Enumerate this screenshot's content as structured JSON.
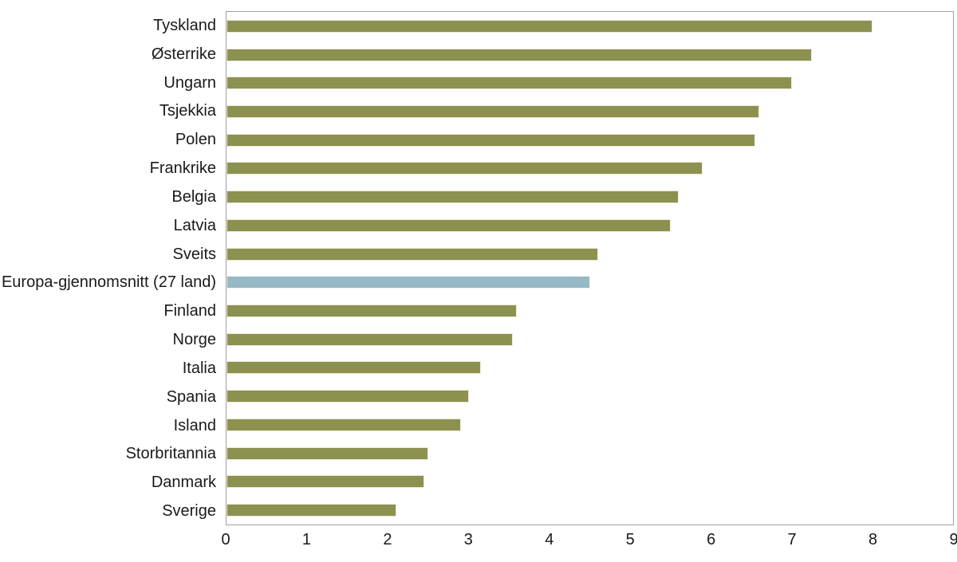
{
  "chart_data": {
    "type": "bar",
    "orientation": "horizontal",
    "title": "",
    "xlabel": "",
    "ylabel": "",
    "grid": false,
    "legend_position": "none",
    "xlim": [
      0,
      9
    ],
    "x_ticks": [
      "0",
      "1",
      "2",
      "3",
      "4",
      "5",
      "6",
      "7",
      "8",
      "9"
    ],
    "categories": [
      "Tyskland",
      "Østerrike",
      "Ungarn",
      "Tsjekkia",
      "Polen",
      "Frankrike",
      "Belgia",
      "Latvia",
      "Sveits",
      "Europa-gjennomsnitt (27 land)",
      "Finland",
      "Norge",
      "Italia",
      "Spania",
      "Island",
      "Storbritannia",
      "Danmark",
      "Sverige"
    ],
    "values": [
      8.0,
      7.25,
      7.0,
      6.6,
      6.55,
      5.9,
      5.6,
      5.5,
      4.6,
      4.5,
      3.6,
      3.55,
      3.15,
      3.0,
      2.9,
      2.5,
      2.45,
      2.1
    ],
    "highlight_category": "Europa-gjennomsnitt (27 land)",
    "highlight_index": 9,
    "colors": {
      "bar": "#8C9150",
      "bar_border": "#EDE9D6",
      "highlight_bar": "#96B8C7",
      "highlight_bar_border": "#F0F2F0",
      "plot_border": "#9F9F9F",
      "text": "#1A1A1A",
      "background": "#FFFFFF"
    }
  }
}
